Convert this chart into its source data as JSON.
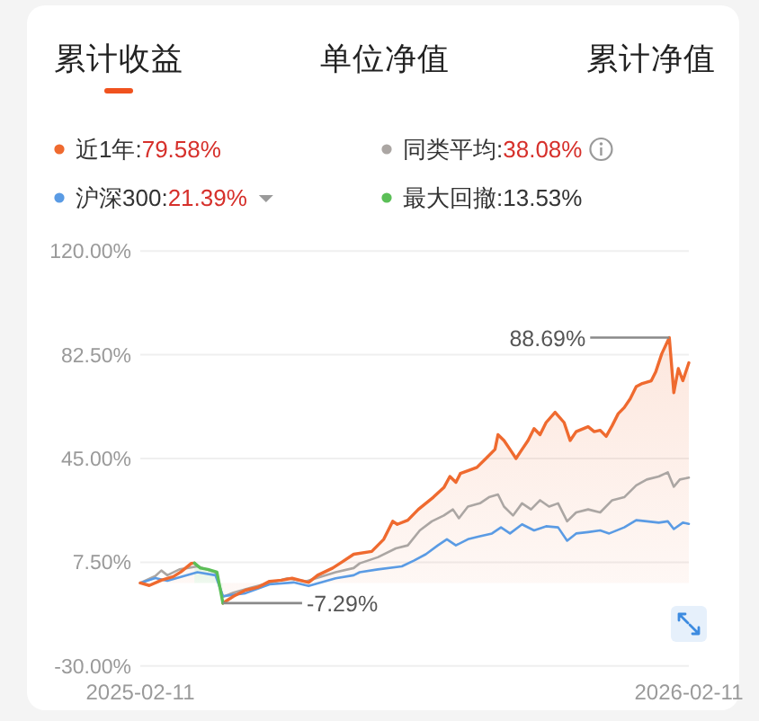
{
  "chart_data": {
    "type": "line",
    "title": "累计收益",
    "annotations": [
      "单位净值",
      "累计净值",
      "79.58%",
      "38.08%",
      "21.39%",
      "13.53%",
      "88.69%",
      "-7.29%"
    ],
    "xlim": [
      "2025-02-11",
      "2026-02-11"
    ],
    "xticks": [
      "2025-02-11",
      "2026-02-11"
    ],
    "ylim": [
      -30,
      120
    ],
    "yticks": [
      {
        "value": -30,
        "label": "-30.00%"
      },
      {
        "value": 7.5,
        "label": "7.50%"
      },
      {
        "value": 45,
        "label": "45.00%"
      },
      {
        "value": 82.5,
        "label": "82.50%"
      },
      {
        "value": 120,
        "label": "120.00%"
      }
    ],
    "grid": "y",
    "legend": "top",
    "series": [
      {
        "name": "近1年:",
        "type": "area",
        "color": "#ef6a2f",
        "x": [
          "2025-02-11",
          "2025-02-17",
          "2025-02-25",
          "2025-03-05",
          "2025-03-10",
          "2025-03-17",
          "2025-03-19",
          null,
          null,
          null,
          "2025-04-07",
          "2025-04-14",
          "2025-04-22",
          "2025-04-30",
          "2025-05-08",
          "2025-05-16",
          "2025-05-23",
          "2025-06-03",
          "2025-06-09",
          "2025-06-19",
          "2025-06-25",
          "2025-07-03",
          "2025-07-15",
          "2025-07-23",
          "2025-07-29",
          "2025-08-01",
          "2025-08-08",
          "2025-08-15",
          "2025-08-25",
          "2025-09-01",
          "2025-09-05",
          "2025-09-09",
          "2025-09-12",
          "2025-09-19",
          "2025-09-23",
          "2025-09-29",
          "2025-10-05",
          "2025-10-07",
          "2025-10-11",
          "2025-10-15",
          "2025-10-19",
          "2025-10-23",
          "2025-10-27",
          "2025-10-31",
          "2025-11-04",
          "2025-11-08",
          "2025-11-14",
          "2025-11-20",
          "2025-11-24",
          "2025-11-28",
          "2025-12-06",
          "2025-12-10",
          "2025-12-14",
          "2025-12-18",
          "2025-12-22",
          "2025-12-26",
          "2025-12-30",
          "2026-01-03",
          "2026-01-07",
          "2026-01-11",
          "2026-01-17",
          "2026-01-20",
          "2026-01-24",
          "2026-01-29",
          "2026-02-01",
          "2026-02-04",
          "2026-02-07",
          "2026-02-11"
        ],
        "values": [
          0,
          -0.9,
          1.0,
          2.3,
          4.0,
          7.1,
          7.2,
          null,
          null,
          null,
          -7.29,
          -4.8,
          -2.6,
          -1.6,
          0.6,
          1.0,
          1.7,
          0.2,
          2.8,
          5.4,
          7.5,
          10.4,
          11.4,
          15.8,
          22.3,
          21.2,
          22.7,
          26.6,
          31,
          34.5,
          38.5,
          36.4,
          39.6,
          41,
          41.8,
          45,
          48.3,
          53.6,
          51.5,
          48.3,
          45,
          48.3,
          51.5,
          55.8,
          53.6,
          58,
          61.7,
          58,
          51.5,
          54.7,
          56.5,
          54.7,
          55.2,
          53,
          56.9,
          61.2,
          63.4,
          66.6,
          71,
          72.1,
          73.1,
          76.4,
          82.9,
          88.69,
          68.8,
          77.5,
          73.1,
          79.58
        ]
      },
      {
        "name": "同类平均:",
        "color": "#aba6a3",
        "x": [
          "2025-02-11",
          "2025-02-21",
          "2025-02-25",
          "2025-03-01",
          "2025-03-09",
          "2025-03-21",
          "2025-04-02",
          "2025-04-07",
          "2025-04-14",
          "2025-04-26",
          "2025-05-20",
          "2025-06-01",
          "2025-06-21",
          "2025-07-03",
          "2025-07-07",
          "2025-07-19",
          "2025-07-31",
          "2025-08-08",
          "2025-08-16",
          "2025-08-24",
          "2025-09-01",
          "2025-09-07",
          "2025-09-11",
          "2025-09-17",
          "2025-09-25",
          "2025-10-01",
          "2025-10-07",
          "2025-10-11",
          "2025-10-17",
          "2025-10-23",
          "2025-10-29",
          "2025-11-04",
          "2025-11-10",
          "2025-11-16",
          "2025-11-22",
          "2025-11-28",
          "2025-12-06",
          "2025-12-14",
          "2025-12-22",
          "2025-12-30",
          "2026-01-07",
          "2026-01-14",
          "2026-01-22",
          "2026-01-28",
          "2026-02-01",
          "2026-02-05",
          "2026-02-11"
        ],
        "values": [
          0,
          2.5,
          4.5,
          2.8,
          4.9,
          6.0,
          3.9,
          -5.0,
          -3.5,
          -1.6,
          1.7,
          0.6,
          3.9,
          5.4,
          7.1,
          9.3,
          12.5,
          13.6,
          19,
          22.3,
          24.4,
          26.6,
          23.4,
          27.6,
          28.8,
          31,
          32,
          27.6,
          24.4,
          28.8,
          26.6,
          29.9,
          27.6,
          28.8,
          22.3,
          25.5,
          26.6,
          25.5,
          29.9,
          31,
          35.3,
          37.4,
          38.5,
          40,
          34.8,
          37.4,
          38.08
        ]
      },
      {
        "name": "沪深300:",
        "color": "#5a9be4",
        "x": [
          "2025-02-11",
          "2025-02-21",
          "2025-03-01",
          "2025-03-21",
          "2025-04-02",
          "2025-04-07",
          "2025-04-22",
          "2025-05-08",
          "2025-05-24",
          "2025-06-03",
          "2025-06-21",
          "2025-07-03",
          "2025-07-07",
          "2025-07-19",
          "2025-08-04",
          "2025-08-12",
          "2025-08-20",
          "2025-08-28",
          "2025-09-03",
          "2025-09-09",
          "2025-09-17",
          "2025-09-25",
          "2025-10-03",
          "2025-10-09",
          "2025-10-15",
          "2025-10-23",
          "2025-10-31",
          "2025-11-08",
          "2025-11-16",
          "2025-11-22",
          "2025-11-28",
          "2025-12-06",
          "2025-12-14",
          "2025-12-20",
          "2025-12-30",
          "2026-01-07",
          "2026-01-14",
          "2026-01-22",
          "2026-01-28",
          "2026-02-01",
          "2026-02-07",
          "2026-02-11"
        ],
        "values": [
          0,
          1.8,
          0.8,
          3.9,
          2.8,
          -4.8,
          -3.7,
          -0.5,
          0.2,
          -1.1,
          1.7,
          2.8,
          3.9,
          4.9,
          6.0,
          8.1,
          10.4,
          13.6,
          15.8,
          13.6,
          15.8,
          16.9,
          17.9,
          20.1,
          17.9,
          21.2,
          19,
          20.5,
          20.1,
          15.3,
          17.9,
          18.4,
          19,
          17.9,
          20.1,
          22.7,
          22.3,
          21.8,
          22.3,
          19.5,
          21.8,
          21.39
        ]
      },
      {
        "name": "最大回撤:",
        "type": "area",
        "color": "#5bbf57",
        "x": [
          "2025-03-19",
          "2025-03-23",
          "2025-03-28",
          "2025-04-03",
          "2025-04-07"
        ],
        "values": [
          7.2,
          5.4,
          4.9,
          3.9,
          -7.29
        ]
      }
    ]
  }
}
